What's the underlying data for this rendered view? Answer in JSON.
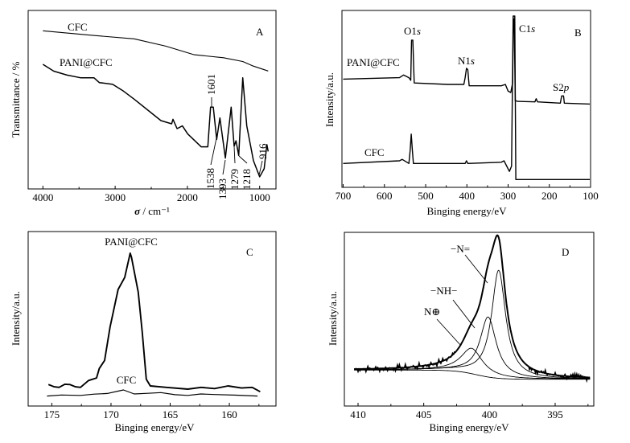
{
  "chart_data": [
    {
      "id": "A",
      "type": "line",
      "panel_label": "A",
      "xlabel_symbol": "σ",
      "xlabel_unit": " / cm⁻¹",
      "ylabel": "Transmittance / %",
      "xlim": [
        4204,
        774
      ],
      "ylim": [
        0,
        100
      ],
      "xticks": [
        4000,
        3000,
        2000,
        1000
      ],
      "xtick_labels": [
        "4000",
        "3000",
        "2000",
        "1000"
      ],
      "grid": false,
      "series": [
        {
          "name": "CFC",
          "label": "CFC",
          "points": [
            [
              4000,
              88.6
            ],
            [
              3700,
              87.5
            ],
            [
              3300,
              86
            ],
            [
              2737,
              84.1
            ],
            [
              2300,
              80
            ],
            [
              1905,
              75.2
            ],
            [
              1500,
              73.5
            ],
            [
              1234,
              71.4
            ],
            [
              1100,
              69
            ],
            [
              882,
              66.1
            ]
          ]
        },
        {
          "name": "PANI@CFC",
          "label": "PANI@CFC",
          "points": [
            [
              4000,
              69.8
            ],
            [
              3850,
              66
            ],
            [
              3666,
              63.8
            ],
            [
              3480,
              62.3
            ],
            [
              3294,
              62.3
            ],
            [
              3220,
              59.6
            ],
            [
              3035,
              58.6
            ],
            [
              2886,
              54.8
            ],
            [
              2737,
              50.3
            ],
            [
              2366,
              38.3
            ],
            [
              2218,
              36.5
            ],
            [
              2199,
              39
            ],
            [
              2143,
              33.8
            ],
            [
              2069,
              35.3
            ],
            [
              1996,
              30.8
            ],
            [
              1810,
              23.6
            ],
            [
              1717,
              23.6
            ],
            [
              1679,
              45.8
            ],
            [
              1642,
              45.8
            ],
            [
              1595,
              27.8
            ],
            [
              1550,
              39.8
            ],
            [
              1475,
              17.3
            ],
            [
              1394,
              45.8
            ],
            [
              1353,
              24
            ],
            [
              1327,
              27
            ],
            [
              1290,
              18.8
            ],
            [
              1234,
              62.3
            ],
            [
              1178,
              35.3
            ],
            [
              1086,
              15.8
            ],
            [
              1000,
              6.8
            ],
            [
              938,
              11.3
            ],
            [
              900,
              24.8
            ],
            [
              882,
              21
            ]
          ]
        }
      ],
      "annotations": [
        "1601",
        "1538",
        "1393",
        "1279",
        "1218",
        "916"
      ]
    },
    {
      "id": "B",
      "type": "line",
      "panel_label": "B",
      "xlabel": "Binging energy/eV",
      "ylabel": "Intensity/a.u.",
      "xlim": [
        703,
        100
      ],
      "ylim": [
        0,
        100
      ],
      "xticks": [
        700,
        600,
        500,
        400,
        300,
        200,
        100
      ],
      "xtick_labels": [
        "700",
        "600",
        "500",
        "400",
        "300",
        "200",
        "100"
      ],
      "grid": false,
      "series": [
        {
          "name": "PANI@CFC",
          "label": "PANI@CFC",
          "points": [
            [
              700,
              61.2
            ],
            [
              563.5,
              62
            ],
            [
              553.7,
              63.5
            ],
            [
              540.7,
              62
            ],
            [
              536.2,
              60.5
            ],
            [
              534.2,
              83.2
            ],
            [
              531,
              83.2
            ],
            [
              527.7,
              59
            ],
            [
              446.4,
              58.2
            ],
            [
              407.4,
              58.2
            ],
            [
              404.2,
              62
            ],
            [
              400.9,
              67.3
            ],
            [
              397.7,
              66.5
            ],
            [
              394.4,
              57.4
            ],
            [
              316.4,
              57.4
            ],
            [
              306.6,
              58.2
            ],
            [
              300.1,
              54.4
            ],
            [
              293.6,
              53.6
            ],
            [
              289.1,
              59
            ],
            [
              287.1,
              95.3
            ],
            [
              285.2,
              95.3
            ],
            [
              282.6,
              49.1
            ],
            [
              277.4,
              48.6
            ],
            [
              235.1,
              48.3
            ],
            [
              231.9,
              50.1
            ],
            [
              228.6,
              48.3
            ],
            [
              173.3,
              47.6
            ],
            [
              170.1,
              51.7
            ],
            [
              165.5,
              51.7
            ],
            [
              163.6,
              47.6
            ],
            [
              102,
              47.1
            ]
          ]
        },
        {
          "name": "CFC",
          "label": "CFC",
          "points": [
            [
              700,
              13.5
            ],
            [
              563.5,
              15
            ],
            [
              557,
              15.8
            ],
            [
              540.7,
              13.5
            ],
            [
              537.5,
              21
            ],
            [
              534.9,
              30.1
            ],
            [
              532.3,
              21
            ],
            [
              529.7,
              13.5
            ],
            [
              404.2,
              13.5
            ],
            [
              400.9,
              15
            ],
            [
              397.7,
              13.5
            ],
            [
              316.4,
              14.2
            ],
            [
              309.9,
              15
            ],
            [
              296.9,
              9
            ],
            [
              291.7,
              12
            ],
            [
              287.8,
              96.8
            ],
            [
              283.9,
              96.8
            ],
            [
              281.3,
              4.4
            ],
            [
              102,
              4.4
            ]
          ]
        }
      ],
      "peak_labels": [
        {
          "main": "O1",
          "ital": "s"
        },
        {
          "main": "N1",
          "ital": "s"
        },
        {
          "main": "C1",
          "ital": "s"
        },
        {
          "main": "S2",
          "ital": "p"
        }
      ]
    },
    {
      "id": "C",
      "type": "line",
      "panel_label": "C",
      "xlabel": "Binging energy/eV",
      "ylabel": "Intensity/a.u.",
      "xlim": [
        177,
        156.06
      ],
      "ylim": [
        0,
        100
      ],
      "xticks": [
        175,
        170,
        165,
        160
      ],
      "xtick_labels": [
        "175",
        "170",
        "165",
        "160"
      ],
      "grid": false,
      "series": [
        {
          "name": "PANI@CFC",
          "label": "PANI@CFC",
          "points": [
            [
              175.29,
              12.3
            ],
            [
              174.8,
              11
            ],
            [
              174.39,
              10.7
            ],
            [
              173.9,
              12.5
            ],
            [
              173.48,
              12.3
            ],
            [
              173,
              11
            ],
            [
              172.58,
              10.7
            ],
            [
              171.9,
              14.6
            ],
            [
              171.22,
              16.1
            ],
            [
              170.99,
              21.5
            ],
            [
              170.54,
              26.1
            ],
            [
              170.08,
              45.3
            ],
            [
              169.4,
              66.8
            ],
            [
              168.84,
              73.7
            ],
            [
              168.38,
              87.6
            ],
            [
              168.27,
              85.3
            ],
            [
              167.7,
              65.3
            ],
            [
              167.36,
              42.3
            ],
            [
              167.02,
              15.4
            ],
            [
              166.68,
              11.5
            ],
            [
              165.32,
              10.7
            ],
            [
              163.51,
              9.7
            ],
            [
              162.38,
              10.7
            ],
            [
              161.25,
              10
            ],
            [
              160.11,
              11.5
            ],
            [
              158.98,
              10.3
            ],
            [
              158.07,
              10.7
            ],
            [
              157.39,
              8.2
            ]
          ]
        },
        {
          "name": "CFC",
          "label": "CFC",
          "points": [
            [
              175.41,
              5.7
            ],
            [
              174.2,
              6.3
            ],
            [
              172.58,
              6.1
            ],
            [
              171.4,
              6.8
            ],
            [
              170.31,
              7.2
            ],
            [
              168.95,
              9.2
            ],
            [
              168.04,
              6.9
            ],
            [
              166.9,
              7.3
            ],
            [
              165.78,
              7.7
            ],
            [
              164.6,
              6.5
            ],
            [
              163.51,
              6.1
            ],
            [
              162.4,
              6.9
            ],
            [
              161.25,
              6.6
            ],
            [
              159.4,
              6.2
            ],
            [
              157.62,
              5.7
            ]
          ]
        }
      ]
    },
    {
      "id": "D",
      "type": "line",
      "panel_label": "D",
      "xlabel": "Binging energy/eV",
      "ylabel": "Intensity/a.u.",
      "xlim": [
        411.04,
        392.06
      ],
      "ylim": [
        0,
        100
      ],
      "xticks": [
        410,
        405,
        400,
        395
      ],
      "xtick_labels": [
        "410",
        "405",
        "400",
        "395"
      ],
      "grid": false,
      "baseline": {
        "left": 20.7,
        "right": 15.4,
        "center": 401.0,
        "width": 0.8
      },
      "components": [
        {
          "name": "-N=",
          "label": "−N=",
          "center": 399.3,
          "height": 62.2,
          "fwhm": 1.3
        },
        {
          "name": "-NH-",
          "label": "−NH−",
          "center": 400.1,
          "height": 34.6,
          "fwhm": 1.5
        },
        {
          "name": "N+",
          "label": "N⊕",
          "center": 401.35,
          "height": 14.6,
          "fwhm": 2.0
        }
      ]
    }
  ]
}
